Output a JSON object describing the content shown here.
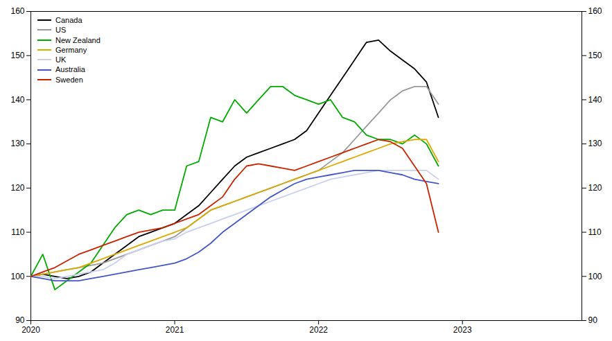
{
  "chart_data": {
    "type": "line",
    "legend": "upper left",
    "xlim": [
      2020.0,
      2023.83
    ],
    "xticks": [
      2020,
      2021,
      2022,
      2023
    ],
    "ylim": [
      90,
      160
    ],
    "yticks": [
      90,
      100,
      110,
      120,
      130,
      140,
      150,
      160
    ],
    "y2lim": [
      90,
      160
    ],
    "y2ticks": [
      90,
      100,
      110,
      120,
      130,
      140,
      150,
      160
    ],
    "grid": false,
    "x": [
      2020.0,
      2020.083,
      2020.167,
      2020.25,
      2020.333,
      2020.417,
      2020.5,
      2020.583,
      2020.667,
      2020.75,
      2020.833,
      2020.917,
      2021.0,
      2021.083,
      2021.167,
      2021.25,
      2021.333,
      2021.417,
      2021.5,
      2021.583,
      2021.667,
      2021.75,
      2021.833,
      2021.917,
      2022.0,
      2022.083,
      2022.167,
      2022.25,
      2022.333,
      2022.417,
      2022.5,
      2022.583,
      2022.667,
      2022.75,
      2022.833
    ],
    "series": [
      {
        "name": "Canada",
        "color": "#000000",
        "values": [
          100,
          100.5,
          100,
          99.5,
          100,
          101,
          103,
          105,
          107,
          109,
          110,
          111,
          112,
          114,
          116,
          119,
          122,
          125,
          127,
          128,
          129,
          130,
          131,
          133,
          137,
          141,
          145,
          149,
          153,
          153.5,
          151,
          149,
          147,
          144,
          136
        ]
      },
      {
        "name": "US",
        "color": "#999999",
        "values": [
          100,
          100.5,
          101,
          101.5,
          102,
          102.5,
          103,
          104,
          105,
          106,
          107,
          108,
          109,
          111,
          113,
          115,
          116,
          117,
          118,
          119,
          120,
          121,
          122,
          123,
          124,
          126,
          128,
          131,
          134,
          137,
          140,
          142,
          143,
          143,
          139
        ]
      },
      {
        "name": "New Zealand",
        "color": "#00aa00",
        "values": [
          100,
          105,
          97,
          99,
          101,
          103,
          107,
          111,
          114,
          115,
          114,
          115,
          115,
          125,
          126,
          136,
          135,
          140,
          137,
          140,
          143,
          143,
          141,
          140,
          139,
          140,
          136,
          135,
          132,
          131,
          131,
          130,
          132,
          130,
          125
        ]
      },
      {
        "name": "Germany",
        "color": "#ddaa00",
        "values": [
          100,
          100.5,
          101,
          101.5,
          102,
          103,
          104,
          105,
          106,
          107,
          108,
          109,
          110,
          111,
          113,
          115,
          116,
          117,
          118,
          119,
          120,
          121,
          122,
          123,
          124,
          125,
          126,
          127,
          128,
          129,
          130,
          130.5,
          131,
          131,
          126
        ]
      },
      {
        "name": "UK",
        "color": "#c8d0f0",
        "values": [
          100,
          100,
          99.5,
          100,
          100.5,
          101,
          101.5,
          103,
          105,
          106,
          107,
          108,
          108.5,
          110,
          111,
          112,
          113,
          114,
          115,
          116,
          117,
          118,
          119,
          120,
          121,
          122,
          122.5,
          123,
          123.5,
          124,
          124,
          124,
          124,
          124,
          122
        ]
      },
      {
        "name": "Australia",
        "color": "#4455cc",
        "values": [
          100,
          99.5,
          99,
          99,
          99,
          99.5,
          100,
          100.5,
          101,
          101.5,
          102,
          102.5,
          103,
          104,
          105.5,
          107.5,
          110,
          112,
          114,
          116,
          118,
          119.5,
          121,
          122,
          122.5,
          123,
          123.5,
          124,
          124,
          124,
          123.5,
          123,
          122,
          121.5,
          121
        ]
      },
      {
        "name": "Sweden",
        "color": "#cc2200",
        "values": [
          100,
          101,
          102,
          103.5,
          105,
          106,
          107,
          108,
          109,
          110,
          110.5,
          111,
          112,
          113,
          114,
          116,
          118,
          122,
          125,
          125.5,
          125,
          124.5,
          124,
          125,
          126,
          127,
          128,
          129,
          130,
          131,
          130.5,
          129,
          125,
          121,
          110
        ]
      }
    ]
  }
}
